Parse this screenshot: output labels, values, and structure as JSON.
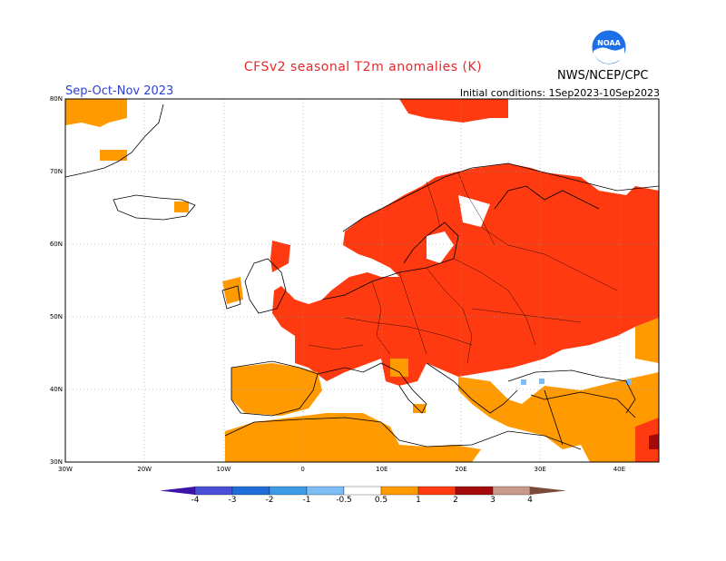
{
  "header": {
    "title": "CFSv2 seasonal T2m anomalies (K)",
    "season": "Sep-Oct-Nov 2023",
    "initial_conditions": "Initial conditions: 1Sep2023-10Sep2023",
    "agency": "NWS/NCEP/CPC",
    "logo_text": "NOAA"
  },
  "axes": {
    "lat_labels": [
      "80N",
      "70N",
      "60N",
      "50N",
      "40N",
      "30N"
    ],
    "lon_labels": [
      "30W",
      "20W",
      "10W",
      "0",
      "10E",
      "20E",
      "30E",
      "40E"
    ]
  },
  "legend": {
    "labels": [
      "-4",
      "-3",
      "-2",
      "-1",
      "-0.5",
      "0.5",
      "1",
      "2",
      "3",
      "4"
    ],
    "colors": [
      "#3b14a8",
      "#4a4fd8",
      "#1f6ed8",
      "#3e9be8",
      "#7cbdf6",
      "#ffffff",
      "#ff9a00",
      "#ff3a10",
      "#a30a0a",
      "#c89a8a",
      "#7a4a3a"
    ]
  },
  "colors": {
    "anom_05_1": "#ff9a00",
    "anom_1_2": "#ff3a10",
    "anom_2_3": "#a30a0a",
    "anom_neg": "#7cbdf6"
  }
}
